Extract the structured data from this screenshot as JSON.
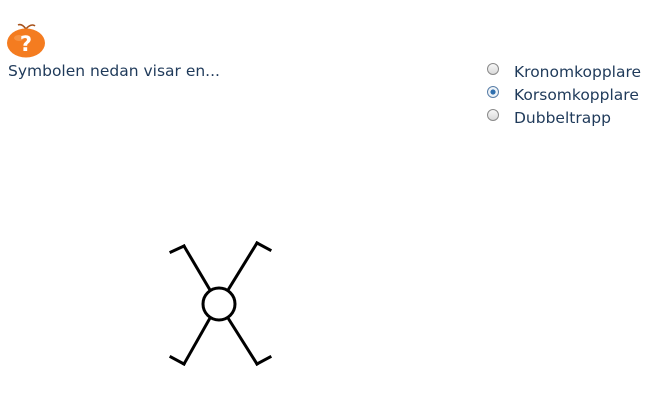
{
  "logo": {
    "icon": "orange-question-mark-icon",
    "glyph": "?",
    "color": "#f47c20"
  },
  "question": {
    "text": "Symbolen nedan visar en..."
  },
  "options": [
    {
      "label": "Kronomkopplare",
      "checked": false
    },
    {
      "label": "Korsomkopplare",
      "checked": true
    },
    {
      "label": "Dubbeltrapp",
      "checked": false
    }
  ],
  "symbol": {
    "icon": "cross-switch-symbol-icon"
  },
  "colors": {
    "text": "#1f3a5a",
    "accent": "#f47c20",
    "radio_selected": "#2f6fae"
  }
}
